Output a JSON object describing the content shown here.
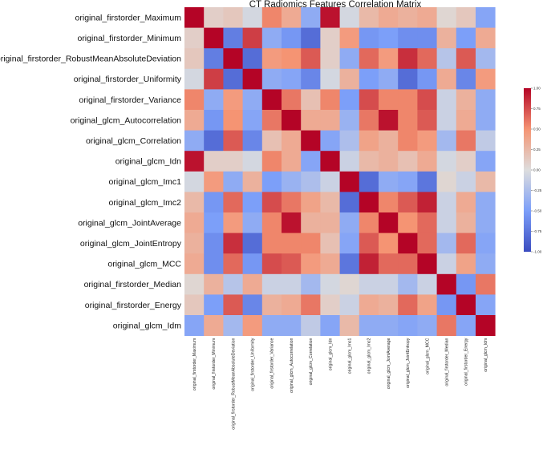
{
  "chart_data": {
    "type": "heatmap",
    "title": "CT Radiomics Features Correlation Matrix",
    "row_labels": [
      "original_firstorder_Maximum",
      "original_firstorder_Minimum",
      "original_firstorder_RobustMeanAbsoluteDeviation",
      "original_firstorder_Uniformity",
      "original_firstorder_Variance",
      "original_glcm_Autocorrelation",
      "original_glcm_Correlation",
      "original_glcm_Idn",
      "original_glcm_Imc1",
      "original_glcm_Imc2",
      "original_glcm_JointAverage",
      "original_glcm_JointEntropy",
      "original_glcm_MCC",
      "original_firstorder_Median",
      "original_firstorder_Energy",
      "original_glcm_Idm"
    ],
    "col_labels": [
      "original_firstorder_Maximum",
      "original_firstorder_Minimum",
      "original_firstorder_RobustMeanAbsoluteDeviation",
      "original_firstorder_Uniformity",
      "original_firstorder_Variance",
      "original_glcm_Autocorrelation",
      "original_glcm_Correlation",
      "original_glcm_Idn",
      "original_glcm_Imc1",
      "original_glcm_Imc2",
      "original_glcm_JointAverage",
      "original_glcm_JointEntropy",
      "original_glcm_MCC",
      "original_firstorder_Median",
      "original_firstorder_Energy",
      "original_glcm_Idm"
    ],
    "values": [
      [
        1.0,
        0.1,
        0.15,
        -0.05,
        0.55,
        0.35,
        -0.4,
        0.95,
        -0.05,
        0.25,
        0.35,
        0.3,
        0.35,
        0.05,
        0.15,
        -0.45
      ],
      [
        0.1,
        1.0,
        -0.7,
        0.8,
        -0.4,
        -0.55,
        -0.8,
        0.1,
        0.45,
        -0.55,
        -0.5,
        -0.6,
        -0.6,
        0.3,
        -0.5,
        0.35
      ],
      [
        0.15,
        -0.7,
        1.0,
        -0.8,
        0.45,
        0.5,
        0.7,
        0.1,
        -0.4,
        0.65,
        0.45,
        0.85,
        0.65,
        -0.2,
        0.7,
        -0.3
      ],
      [
        -0.05,
        0.8,
        -0.8,
        1.0,
        -0.4,
        -0.45,
        -0.65,
        -0.05,
        0.3,
        -0.5,
        -0.4,
        -0.8,
        -0.55,
        0.35,
        -0.65,
        0.45
      ],
      [
        0.55,
        -0.4,
        0.45,
        -0.4,
        1.0,
        0.6,
        0.2,
        0.55,
        -0.5,
        0.75,
        0.55,
        0.55,
        0.75,
        -0.1,
        0.3,
        -0.4
      ],
      [
        0.35,
        -0.55,
        0.5,
        -0.45,
        0.6,
        1.0,
        0.35,
        0.35,
        -0.35,
        0.6,
        0.95,
        0.55,
        0.7,
        -0.1,
        0.35,
        -0.4
      ],
      [
        -0.4,
        -0.8,
        0.7,
        -0.65,
        0.2,
        0.35,
        1.0,
        -0.45,
        -0.25,
        0.4,
        0.3,
        0.55,
        0.45,
        -0.3,
        0.6,
        -0.15
      ],
      [
        0.95,
        0.1,
        0.1,
        -0.05,
        0.55,
        0.35,
        -0.45,
        1.0,
        -0.1,
        0.25,
        0.3,
        0.2,
        0.35,
        -0.05,
        0.1,
        -0.45
      ],
      [
        -0.05,
        0.45,
        -0.4,
        0.3,
        -0.5,
        -0.35,
        -0.25,
        -0.1,
        1.0,
        -0.8,
        -0.4,
        -0.45,
        -0.75,
        0.05,
        -0.1,
        0.25
      ],
      [
        0.25,
        -0.55,
        0.65,
        -0.5,
        0.75,
        0.6,
        0.4,
        0.25,
        -0.8,
        1.0,
        0.55,
        0.7,
        0.9,
        -0.1,
        0.35,
        -0.4
      ],
      [
        0.35,
        -0.5,
        0.45,
        -0.4,
        0.55,
        0.95,
        0.3,
        0.3,
        -0.4,
        0.55,
        1.0,
        0.5,
        0.65,
        -0.1,
        0.3,
        -0.4
      ],
      [
        0.3,
        -0.6,
        0.85,
        -0.8,
        0.55,
        0.55,
        0.55,
        0.2,
        -0.45,
        0.7,
        0.5,
        1.0,
        0.65,
        -0.3,
        0.65,
        -0.45
      ],
      [
        0.35,
        -0.6,
        0.65,
        -0.55,
        0.75,
        0.7,
        0.45,
        0.35,
        -0.75,
        0.9,
        0.65,
        0.65,
        1.0,
        -0.1,
        0.4,
        -0.4
      ],
      [
        0.05,
        0.3,
        -0.2,
        0.35,
        -0.1,
        -0.1,
        -0.3,
        -0.05,
        0.05,
        -0.1,
        -0.1,
        -0.3,
        -0.1,
        1.0,
        -0.55,
        0.6
      ],
      [
        0.15,
        -0.5,
        0.7,
        -0.65,
        0.3,
        0.35,
        0.6,
        0.1,
        -0.1,
        0.35,
        0.3,
        0.65,
        0.4,
        -0.55,
        1.0,
        -0.45
      ],
      [
        -0.45,
        0.35,
        -0.3,
        0.45,
        -0.4,
        -0.4,
        -0.15,
        -0.45,
        0.25,
        -0.4,
        -0.4,
        -0.45,
        -0.4,
        0.6,
        -0.45,
        1.0
      ]
    ],
    "vmin": -1,
    "vmax": 1,
    "colormap": "coolwarm",
    "colorbar_ticks": [
      "1.00",
      "0.75",
      "0.50",
      "0.25",
      "0.00",
      "-0.25",
      "-0.50",
      "-0.75",
      "-1.00"
    ],
    "colorbar_values": [
      1.0,
      0.75,
      0.5,
      0.25,
      0.0,
      -0.25,
      -0.5,
      -0.75,
      -1.0
    ]
  }
}
